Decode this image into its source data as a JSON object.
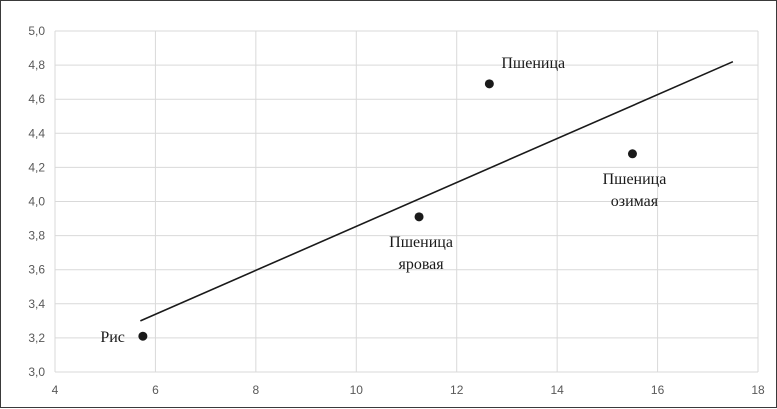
{
  "chart_data": {
    "type": "scatter",
    "title": "",
    "xlabel": "",
    "ylabel": "",
    "xlim": [
      4,
      18
    ],
    "ylim": [
      3.0,
      5.0
    ],
    "x_ticks": [
      4,
      6,
      8,
      10,
      12,
      14,
      16,
      18
    ],
    "y_ticks": [
      3.0,
      3.2,
      3.4,
      3.6,
      3.8,
      4.0,
      4.2,
      4.4,
      4.6,
      4.8,
      5.0
    ],
    "x_tick_labels": [
      "4",
      "6",
      "8",
      "10",
      "12",
      "14",
      "16",
      "18"
    ],
    "y_tick_labels": [
      "3,0",
      "3,2",
      "3,4",
      "3,6",
      "3,8",
      "4,0",
      "4,2",
      "4,4",
      "4,6",
      "4,8",
      "5,0"
    ],
    "grid": true,
    "legend": "none",
    "points": [
      {
        "x": 5.75,
        "y": 3.21,
        "label": [
          "Рис"
        ],
        "label_pos": "left"
      },
      {
        "x": 11.25,
        "y": 3.91,
        "label": [
          "Пшеница",
          "яровая"
        ],
        "label_pos": "below"
      },
      {
        "x": 12.65,
        "y": 4.69,
        "label": [
          "Пшеница"
        ],
        "label_pos": "above-right"
      },
      {
        "x": 15.5,
        "y": 4.28,
        "label": [
          "Пшеница",
          "озимая"
        ],
        "label_pos": "below"
      }
    ],
    "trendline": {
      "x": [
        5.7,
        17.5
      ],
      "y": [
        3.3,
        4.82
      ]
    },
    "colors": {
      "grid": "#d9d9d9",
      "marker": "#1a1a1a",
      "trendline": "#1a1a1a",
      "tick_text": "#595959",
      "frame": "#3a3a3a"
    }
  }
}
